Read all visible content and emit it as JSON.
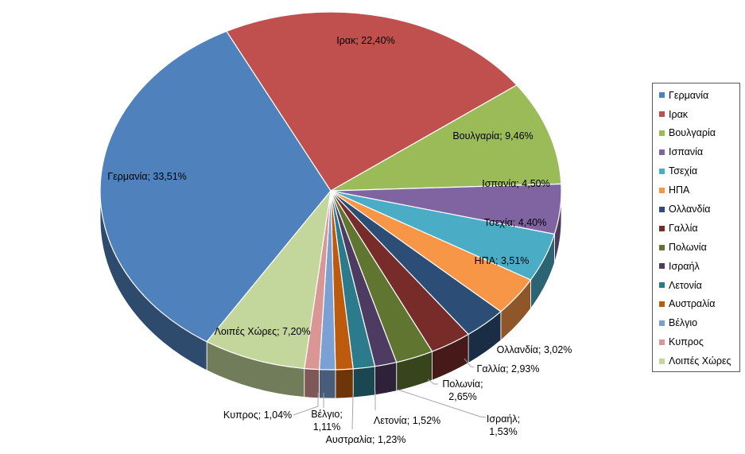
{
  "chart_data": {
    "type": "pie",
    "effect_3d": true,
    "direction": "clockwise",
    "start_angle_deg": 212.5,
    "legend_position": "right",
    "number_format": "comma-decimal-percent",
    "background_color": "#FFFFFF",
    "label_color": "#000000",
    "leader_line_color": "#A6A6A6",
    "legend_border_color": "#595959",
    "slice_separator_color": "#FFFFFF",
    "slices": [
      {
        "label": "Γερμανία",
        "value": 33.51,
        "display": "Γερμανία; 33,51%",
        "color": "#4F81BD"
      },
      {
        "label": "Ιρακ",
        "value": 22.4,
        "display": "Ιρακ; 22,40%",
        "color": "#C0504D"
      },
      {
        "label": "Βουλγαρία",
        "value": 9.46,
        "display": "Βουλγαρία; 9,46%",
        "color": "#9BBB59"
      },
      {
        "label": "Ισπανία",
        "value": 4.5,
        "display": "Ισπανία; 4,50%",
        "color": "#8064A2"
      },
      {
        "label": "Τσεχία",
        "value": 4.4,
        "display": "Τσεχία; 4,40%",
        "color": "#4BACC6"
      },
      {
        "label": "ΗΠΑ",
        "value": 3.51,
        "display": "ΗΠΑ; 3,51%",
        "color": "#F79646"
      },
      {
        "label": "Ολλανδία",
        "value": 3.02,
        "display": "Ολλανδία; 3,02%",
        "color": "#2C4D75"
      },
      {
        "label": "Γαλλία",
        "value": 2.93,
        "display": "Γαλλία; 2,93%",
        "color": "#772C2A"
      },
      {
        "label": "Πολωνία",
        "value": 2.65,
        "display": "Πολωνία; 2,65%",
        "color": "#5F7530"
      },
      {
        "label": "Ισραήλ",
        "value": 1.53,
        "display": "Ισραήλ; 1,53%",
        "color": "#4D3B62"
      },
      {
        "label": "Λετονία",
        "value": 1.52,
        "display": "Λετονία; 1,52%",
        "color": "#2C7B8C"
      },
      {
        "label": "Αυστραλία",
        "value": 1.23,
        "display": "Αυστραλία; 1,23%",
        "color": "#BC5B0D"
      },
      {
        "label": "Βέλγιο",
        "value": 1.11,
        "display": "Βέλγιο; 1,11%",
        "color": "#7BA0D3"
      },
      {
        "label": "Κυπρος",
        "value": 1.04,
        "display": "Κυπρος; 1,04%",
        "color": "#D99694"
      },
      {
        "label": "Λοιπές Χώρες",
        "value": 7.2,
        "display": "Λοιπές Χώρες; 7,20%",
        "color": "#C3D69B"
      }
    ]
  }
}
